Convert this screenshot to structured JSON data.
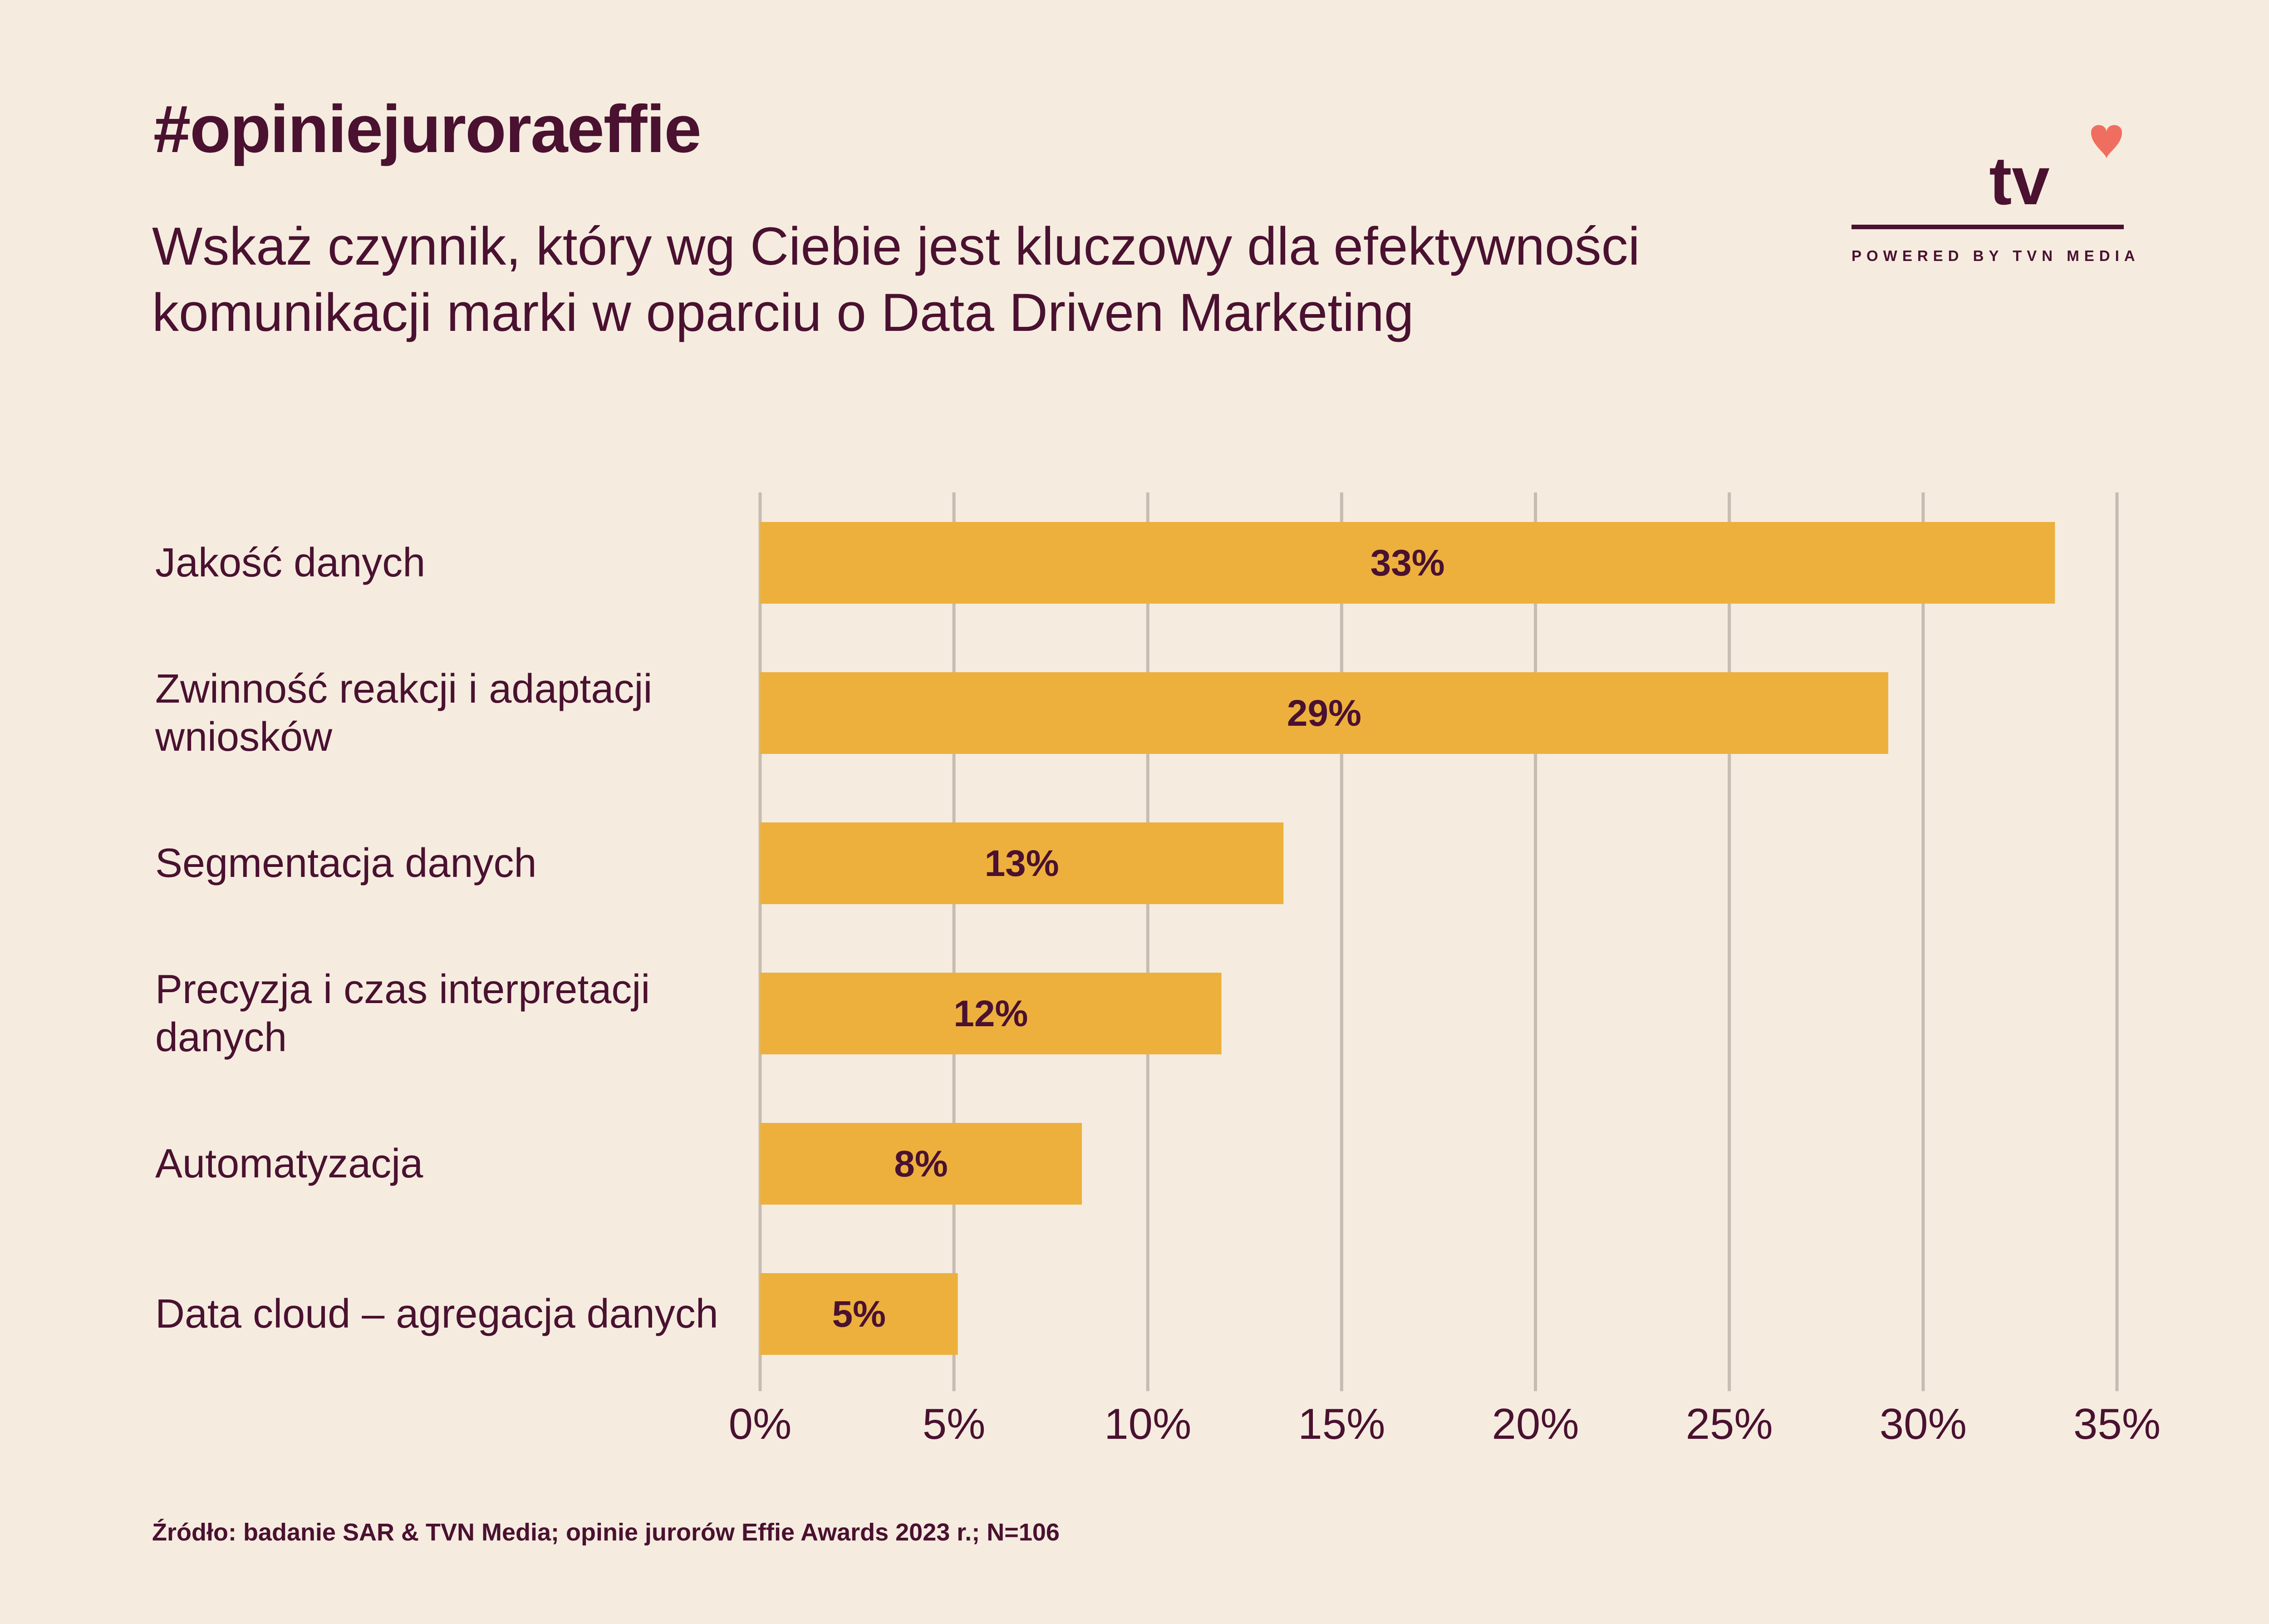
{
  "header": {
    "hashtag": "#opiniejuroraeffie",
    "question": "Wskaż czynnik, który wg Ciebie jest kluczowy dla efektywności komunikacji marki w oparciu o Data Driven Marketing"
  },
  "logo": {
    "text": "tv",
    "powered_by": "POWERED BY TVN MEDIA",
    "heart_icon": "heart-icon",
    "accent_color": "#f06e5f"
  },
  "chart_data": {
    "type": "bar",
    "orientation": "horizontal",
    "categories": [
      "Jakość danych",
      "Zwinność reakcji i adaptacji wniosków",
      "Segmentacja danych",
      "Precyzja i czas interpretacji danych",
      "Automatyzacja",
      "Data cloud – agregacja danych"
    ],
    "values": [
      33.4,
      29.1,
      13.5,
      11.9,
      8.3,
      5.1
    ],
    "value_labels": [
      "33%",
      "29%",
      "13%",
      "12%",
      "8%",
      "5%"
    ],
    "x_ticks": [
      "0%",
      "5%",
      "10%",
      "15%",
      "20%",
      "25%",
      "30%",
      "35%"
    ],
    "xlim": [
      0,
      35
    ],
    "grid": true,
    "bar_color": "#edb03c",
    "grid_color": "#c7bcb2"
  },
  "footer": {
    "source": "Źródło: badanie SAR & TVN Media; opinie jurorów Effie Awards 2023 r.; N=106"
  }
}
